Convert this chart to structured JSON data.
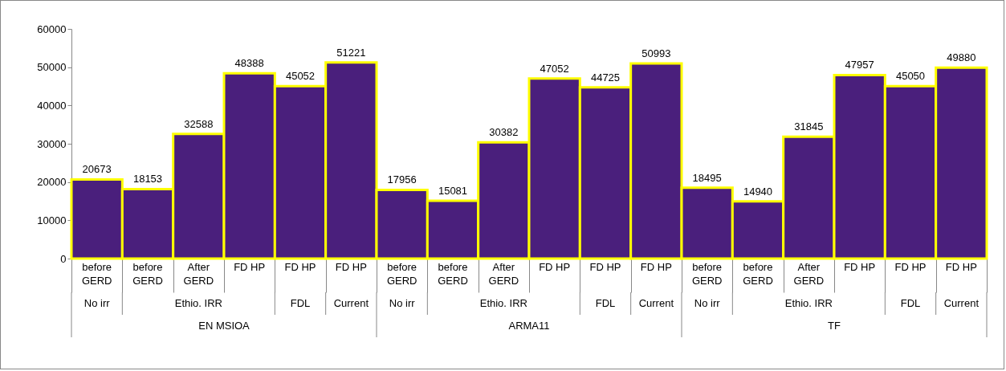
{
  "chart_data": {
    "type": "bar",
    "categories": [
      "before GERD",
      "before GERD",
      "After GERD",
      "FD HP",
      "FD HP",
      "FD HP",
      "before GERD",
      "before GERD",
      "After GERD",
      "FD HP",
      "FD HP",
      "FD HP",
      "before GERD",
      "before GERD",
      "After GERD",
      "FD HP",
      "FD HP",
      "FD HP"
    ],
    "values": [
      20673,
      18153,
      32588,
      48388,
      45052,
      51221,
      17956,
      15081,
      30382,
      47052,
      44725,
      50993,
      18495,
      14940,
      31845,
      47957,
      45050,
      49880
    ],
    "color": "#4a1f7c",
    "data_labels": true,
    "ylim": [
      0,
      60000
    ],
    "yticks": [
      0,
      10000,
      20000,
      30000,
      40000,
      50000,
      60000
    ],
    "annotations": [
      "No irr",
      "Ethio. IRR",
      "FDL",
      "Current",
      "No irr",
      "Ethio. IRR",
      "FDL",
      "Current",
      "No irr",
      "Ethio. IRR",
      "FDL",
      "Current",
      "EN MSIOA",
      "ARMA11",
      "TF"
    ]
  }
}
